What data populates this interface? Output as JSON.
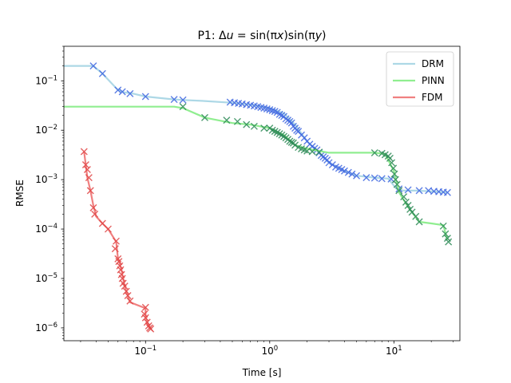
{
  "chart_data": {
    "type": "line",
    "title": "P1: Δu = sin(πx)sin(πy)",
    "xlabel": "Time [s]",
    "ylabel": "RMSE",
    "xscale": "log",
    "yscale": "log",
    "xlim": [
      0.022,
      34
    ],
    "ylim": [
      5.5e-07,
      0.5
    ],
    "xticks": [
      {
        "value": 0.1,
        "base": "10",
        "exp": "−1"
      },
      {
        "value": 1,
        "base": "10",
        "exp": "0"
      },
      {
        "value": 10,
        "base": "10",
        "exp": "1"
      }
    ],
    "yticks": [
      {
        "value": 1e-06,
        "base": "10",
        "exp": "−6"
      },
      {
        "value": 1e-05,
        "base": "10",
        "exp": "−5"
      },
      {
        "value": 0.0001,
        "base": "10",
        "exp": "−4"
      },
      {
        "value": 0.001,
        "base": "10",
        "exp": "−3"
      },
      {
        "value": 0.01,
        "base": "10",
        "exp": "−2"
      },
      {
        "value": 0.1,
        "base": "10",
        "exp": "−1"
      }
    ],
    "grid": false,
    "legend_position": "top-right",
    "series": [
      {
        "name": "DRM",
        "line_color": "#add8e6",
        "marker_color": "#4169e1",
        "x": [
          0.022,
          0.038,
          0.045,
          0.06,
          0.068,
          0.08,
          0.1,
          0.17,
          0.2,
          0.3,
          0.5,
          0.7,
          1.0,
          1.3,
          1.6,
          2.0,
          2.5,
          3.0,
          4.0,
          5.0,
          7.0,
          9.0,
          10.5,
          12.0,
          15.0,
          20.0,
          27.0
        ],
        "y": [
          0.2,
          0.2,
          0.14,
          0.065,
          0.058,
          0.055,
          0.048,
          0.042,
          0.041,
          0.039,
          0.036,
          0.033,
          0.028,
          0.022,
          0.013,
          0.006,
          0.0035,
          0.0022,
          0.0015,
          0.0012,
          0.0011,
          0.00105,
          0.00065,
          0.0006,
          0.0006,
          0.00058,
          0.00055
        ],
        "markers": [
          [
            0.038,
            0.2
          ],
          [
            0.045,
            0.14
          ],
          [
            0.06,
            0.065
          ],
          [
            0.065,
            0.06
          ],
          [
            0.075,
            0.055
          ],
          [
            0.1,
            0.048
          ],
          [
            0.17,
            0.042
          ],
          [
            0.2,
            0.041
          ],
          [
            0.48,
            0.037
          ],
          [
            0.52,
            0.036
          ],
          [
            0.56,
            0.035
          ],
          [
            0.6,
            0.034
          ],
          [
            0.65,
            0.033
          ],
          [
            0.7,
            0.032
          ],
          [
            0.75,
            0.031
          ],
          [
            0.8,
            0.03
          ],
          [
            0.85,
            0.029
          ],
          [
            0.9,
            0.028
          ],
          [
            0.95,
            0.027
          ],
          [
            1.0,
            0.026
          ],
          [
            1.05,
            0.025
          ],
          [
            1.1,
            0.024
          ],
          [
            1.15,
            0.023
          ],
          [
            1.2,
            0.021
          ],
          [
            1.25,
            0.02
          ],
          [
            1.3,
            0.019
          ],
          [
            1.35,
            0.017
          ],
          [
            1.4,
            0.016
          ],
          [
            1.45,
            0.015
          ],
          [
            1.5,
            0.014
          ],
          [
            1.55,
            0.012
          ],
          [
            1.6,
            0.011
          ],
          [
            1.65,
            0.01
          ],
          [
            1.7,
            0.0095
          ],
          [
            1.8,
            0.008
          ],
          [
            1.9,
            0.007
          ],
          [
            2.0,
            0.006
          ],
          [
            2.1,
            0.0052
          ],
          [
            2.2,
            0.0047
          ],
          [
            2.3,
            0.0043
          ],
          [
            2.4,
            0.004
          ],
          [
            2.5,
            0.0035
          ],
          [
            2.6,
            0.0031
          ],
          [
            2.7,
            0.0029
          ],
          [
            2.8,
            0.0027
          ],
          [
            2.9,
            0.0025
          ],
          [
            3.0,
            0.0022
          ],
          [
            3.2,
            0.002
          ],
          [
            3.4,
            0.0018
          ],
          [
            3.6,
            0.0017
          ],
          [
            3.8,
            0.0016
          ],
          [
            4.0,
            0.0015
          ],
          [
            4.3,
            0.0014
          ],
          [
            4.6,
            0.0013
          ],
          [
            5.0,
            0.0012
          ],
          [
            6.0,
            0.0011
          ],
          [
            7.0,
            0.00108
          ],
          [
            8.0,
            0.00105
          ],
          [
            9.5,
            0.00103
          ],
          [
            11.0,
            0.00065
          ],
          [
            13.0,
            0.00062
          ],
          [
            16.0,
            0.0006
          ],
          [
            19.0,
            0.0006
          ],
          [
            21.0,
            0.00058
          ],
          [
            23.0,
            0.00057
          ],
          [
            25.0,
            0.00056
          ],
          [
            27.0,
            0.00055
          ]
        ]
      },
      {
        "name": "PINN",
        "line_color": "#90ee90",
        "marker_color": "#2e8b57",
        "x": [
          0.022,
          0.17,
          0.2,
          0.3,
          0.5,
          0.7,
          1.0,
          1.3,
          1.6,
          2.0,
          3.0,
          5.0,
          7.0,
          8.5,
          10.0,
          11.0,
          13.0,
          16.0,
          20.0,
          25.0,
          27.0
        ],
        "y": [
          0.03,
          0.03,
          0.028,
          0.018,
          0.014,
          0.013,
          0.011,
          0.008,
          0.005,
          0.0042,
          0.0035,
          0.0035,
          0.0035,
          0.0033,
          0.0015,
          0.00055,
          0.00028,
          0.00014,
          0.00013,
          0.00012,
          6e-05
        ],
        "markers": [
          [
            0.2,
            0.03
          ],
          [
            0.3,
            0.018
          ],
          [
            0.45,
            0.016
          ],
          [
            0.55,
            0.015
          ],
          [
            0.65,
            0.013
          ],
          [
            0.75,
            0.012
          ],
          [
            0.9,
            0.011
          ],
          [
            1.0,
            0.011
          ],
          [
            1.05,
            0.01
          ],
          [
            1.1,
            0.0095
          ],
          [
            1.15,
            0.009
          ],
          [
            1.2,
            0.0085
          ],
          [
            1.25,
            0.008
          ],
          [
            1.3,
            0.0075
          ],
          [
            1.35,
            0.007
          ],
          [
            1.4,
            0.0065
          ],
          [
            1.45,
            0.006
          ],
          [
            1.5,
            0.0057
          ],
          [
            1.55,
            0.0055
          ],
          [
            1.6,
            0.005
          ],
          [
            1.7,
            0.0045
          ],
          [
            1.8,
            0.0042
          ],
          [
            1.9,
            0.004
          ],
          [
            2.0,
            0.0038
          ],
          [
            2.2,
            0.0037
          ],
          [
            2.5,
            0.0036
          ],
          [
            7.0,
            0.0035
          ],
          [
            8.0,
            0.0034
          ],
          [
            8.5,
            0.0032
          ],
          [
            9.0,
            0.003
          ],
          [
            9.3,
            0.0027
          ],
          [
            9.6,
            0.0022
          ],
          [
            9.9,
            0.0017
          ],
          [
            10.1,
            0.0013
          ],
          [
            10.3,
            0.001
          ],
          [
            10.6,
            0.0008
          ],
          [
            11.0,
            0.0006
          ],
          [
            12.0,
            0.00045
          ],
          [
            12.5,
            0.00035
          ],
          [
            13.0,
            0.0003
          ],
          [
            13.5,
            0.00025
          ],
          [
            14.0,
            0.00022
          ],
          [
            15.0,
            0.00018
          ],
          [
            16.0,
            0.00014
          ],
          [
            25.0,
            0.000115
          ],
          [
            26.0,
            8e-05
          ],
          [
            27.0,
            6.5e-05
          ],
          [
            27.5,
            5.5e-05
          ]
        ]
      },
      {
        "name": "FDM",
        "line_color": "#f08080",
        "marker_color": "#e04545",
        "x": [
          0.032,
          0.033,
          0.034,
          0.036,
          0.038,
          0.04,
          0.045,
          0.05,
          0.058,
          0.06,
          0.062,
          0.064,
          0.066,
          0.068,
          0.07,
          0.072,
          0.075,
          0.1,
          0.1,
          0.102,
          0.105,
          0.108,
          0.11
        ],
        "y": [
          0.0037,
          0.002,
          0.0011,
          0.0006,
          0.0003,
          0.00018,
          0.00013,
          0.0001,
          5.5e-05,
          2.5e-05,
          2e-05,
          1.5e-05,
          1e-05,
          7e-06,
          5.5e-06,
          4.5e-06,
          3.3e-06,
          2.5e-06,
          1.7e-06,
          1.4e-06,
          1.2e-06,
          1e-06,
          9.5e-07
        ],
        "markers": [
          [
            0.032,
            0.0037
          ],
          [
            0.033,
            0.002
          ],
          [
            0.034,
            0.0016
          ],
          [
            0.035,
            0.0011
          ],
          [
            0.036,
            0.0006
          ],
          [
            0.038,
            0.00027
          ],
          [
            0.039,
            0.0002
          ],
          [
            0.045,
            0.00013
          ],
          [
            0.05,
            0.0001
          ],
          [
            0.058,
            5.7e-05
          ],
          [
            0.057,
            4e-05
          ],
          [
            0.06,
            2.5e-05
          ],
          [
            0.061,
            2.2e-05
          ],
          [
            0.062,
            1.8e-05
          ],
          [
            0.063,
            1.5e-05
          ],
          [
            0.064,
            1.2e-05
          ],
          [
            0.065,
            1e-05
          ],
          [
            0.066,
            8e-06
          ],
          [
            0.068,
            7e-06
          ],
          [
            0.07,
            5.5e-06
          ],
          [
            0.072,
            4.5e-06
          ],
          [
            0.075,
            3.5e-06
          ],
          [
            0.1,
            2.6e-06
          ],
          [
            0.098,
            1.9e-06
          ],
          [
            0.1,
            1.6e-06
          ],
          [
            0.103,
            1.3e-06
          ],
          [
            0.106,
            1.1e-06
          ],
          [
            0.108,
            1e-06
          ],
          [
            0.11,
            9.5e-07
          ]
        ]
      }
    ]
  }
}
